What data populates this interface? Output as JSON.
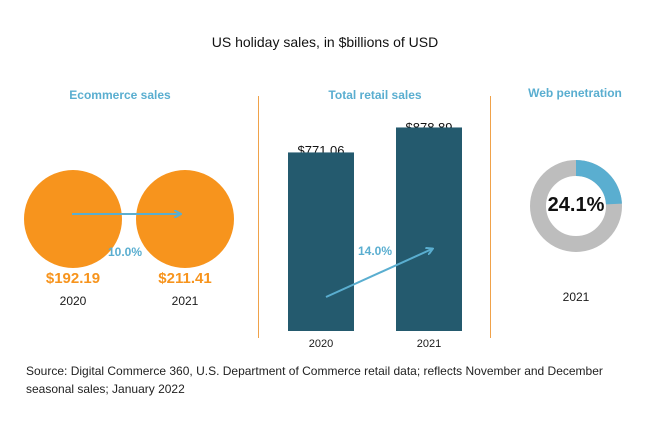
{
  "title": "US holiday sales, in $billions of USD",
  "colors": {
    "orange": "#f7941d",
    "teal": "#245a6e",
    "blue": "#5aaed0",
    "gray": "#bdbdbd",
    "divider": "#f0a24a"
  },
  "ecommerce": {
    "title": "Ecommerce sales",
    "growth_label": "10.0%",
    "items": [
      {
        "year": "2020",
        "value_label": "$192.19"
      },
      {
        "year": "2021",
        "value_label": "$211.41"
      }
    ]
  },
  "retail": {
    "title": "Total retail sales",
    "growth_label": "14.0%"
  },
  "web": {
    "title": "Web penetration",
    "value_label": "24.1%",
    "value": 24.1,
    "year": "2021"
  },
  "source": "Source: Digital Commerce 360, U.S. Department of Commerce retail data; reflects November and December seasonal sales; January 2022",
  "chart_data": [
    {
      "type": "bubble",
      "title": "Ecommerce sales",
      "categories": [
        "2020",
        "2021"
      ],
      "values": [
        192.19,
        211.41
      ],
      "growth_pct": 10.0
    },
    {
      "type": "bar",
      "title": "Total retail sales",
      "categories": [
        "2020",
        "2021"
      ],
      "values": [
        771.06,
        878.89
      ],
      "data_labels": [
        "$771.06",
        "$878.89"
      ],
      "growth_pct": 14.0,
      "ylim": [
        0,
        950
      ]
    },
    {
      "type": "pie",
      "title": "Web penetration",
      "categories": [
        "2021"
      ],
      "values": [
        24.1
      ],
      "unit": "%"
    }
  ]
}
